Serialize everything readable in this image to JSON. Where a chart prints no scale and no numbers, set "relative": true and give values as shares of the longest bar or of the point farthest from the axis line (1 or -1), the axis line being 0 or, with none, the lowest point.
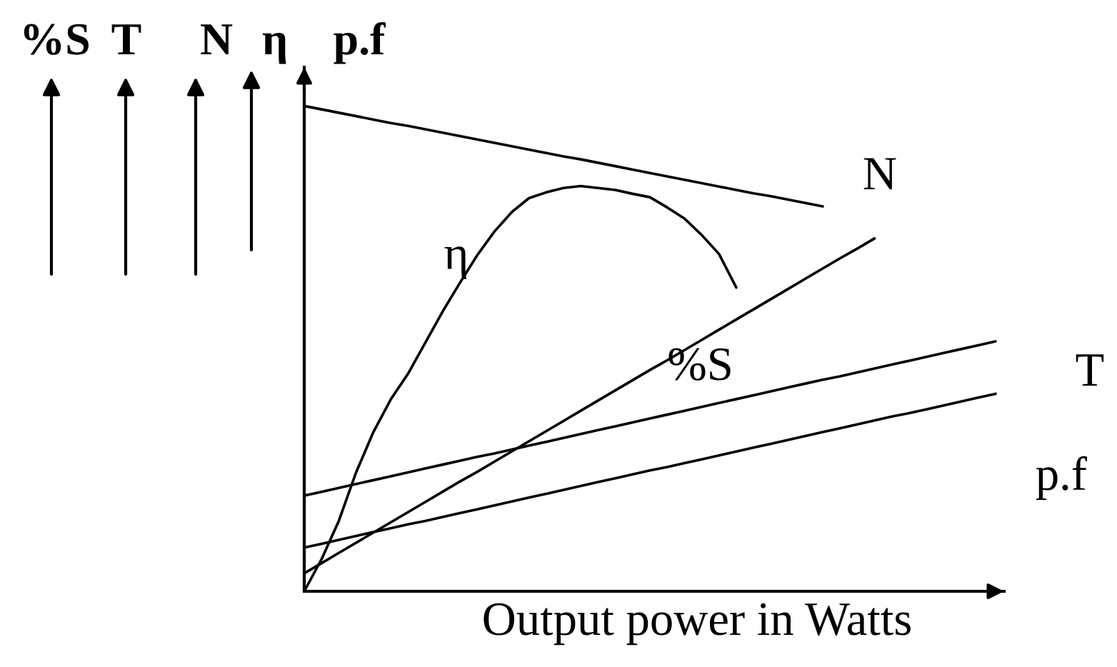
{
  "chart_data": {
    "type": "line",
    "relative": true,
    "xlabel": "Output power in Watts",
    "annotations": [
      "%S",
      "T",
      "N",
      "η",
      "p.f"
    ],
    "categories": [
      null,
      null,
      null,
      null,
      null,
      null,
      null,
      null,
      null,
      null,
      null,
      null,
      null,
      null,
      null,
      null,
      null,
      null,
      null,
      null,
      null,
      null,
      null,
      null,
      null,
      null,
      null,
      null,
      null,
      null,
      null,
      null,
      null,
      null,
      null,
      null,
      null,
      null,
      null,
      null,
      null
    ],
    "series": [
      {
        "name": "N",
        "color": "#000000",
        "values": [
          1.0,
          0.993,
          0.986,
          0.979,
          0.972,
          0.965,
          0.959,
          0.952,
          0.945,
          0.938,
          0.931,
          0.924,
          0.917,
          0.91,
          0.903,
          0.896,
          0.89,
          0.883,
          0.876,
          0.869,
          0.862,
          0.855,
          0.848,
          0.841,
          0.834,
          0.827,
          0.82,
          0.814,
          0.807,
          0.8,
          0.793,
          null,
          null,
          null,
          null,
          null,
          null,
          null,
          null,
          null,
          null
        ]
      },
      {
        "name": "η",
        "color": "#000000",
        "values": [
          0.0,
          0.066,
          0.145,
          0.245,
          0.328,
          0.395,
          0.448,
          0.512,
          0.576,
          0.635,
          0.692,
          0.741,
          0.781,
          0.81,
          0.822,
          0.831,
          0.835,
          0.831,
          0.827,
          0.819,
          0.812,
          0.791,
          0.768,
          0.734,
          0.695,
          0.626,
          null,
          null,
          null,
          null,
          null,
          null,
          null,
          null,
          null,
          null,
          null,
          null,
          null,
          null,
          null
        ]
      },
      {
        "name": "%S",
        "color": "#000000",
        "values": [
          0.037,
          0.058,
          0.079,
          0.1,
          0.121,
          0.142,
          0.163,
          0.184,
          0.205,
          0.226,
          0.246,
          0.267,
          0.288,
          0.309,
          0.33,
          0.351,
          0.372,
          0.393,
          0.414,
          0.435,
          0.456,
          0.476,
          0.497,
          0.518,
          0.539,
          0.56,
          0.581,
          0.602,
          0.623,
          0.644,
          0.665,
          0.686,
          0.706,
          0.727,
          null,
          null,
          null,
          null,
          null,
          null,
          null
        ]
      },
      {
        "name": "T",
        "color": "#000000",
        "values": [
          0.197,
          0.205,
          0.213,
          0.221,
          0.229,
          0.237,
          0.245,
          0.253,
          0.261,
          0.269,
          0.277,
          0.284,
          0.292,
          0.3,
          0.308,
          0.316,
          0.324,
          0.332,
          0.34,
          0.348,
          0.356,
          0.364,
          0.372,
          0.38,
          0.388,
          0.396,
          0.404,
          0.412,
          0.42,
          0.428,
          0.436,
          0.443,
          0.451,
          0.459,
          0.467,
          0.475,
          0.483,
          0.491,
          0.499,
          0.507,
          0.515
        ]
      },
      {
        "name": "p.f",
        "color": "#000000",
        "values": [
          0.09,
          0.098,
          0.106,
          0.114,
          0.122,
          0.13,
          0.138,
          0.145,
          0.153,
          0.161,
          0.169,
          0.177,
          0.185,
          0.193,
          0.201,
          0.209,
          0.217,
          0.225,
          0.233,
          0.241,
          0.249,
          0.256,
          0.264,
          0.272,
          0.28,
          0.288,
          0.296,
          0.304,
          0.312,
          0.32,
          0.328,
          0.336,
          0.344,
          0.352,
          0.36,
          0.367,
          0.375,
          0.383,
          0.391,
          0.399,
          0.407
        ]
      }
    ]
  }
}
